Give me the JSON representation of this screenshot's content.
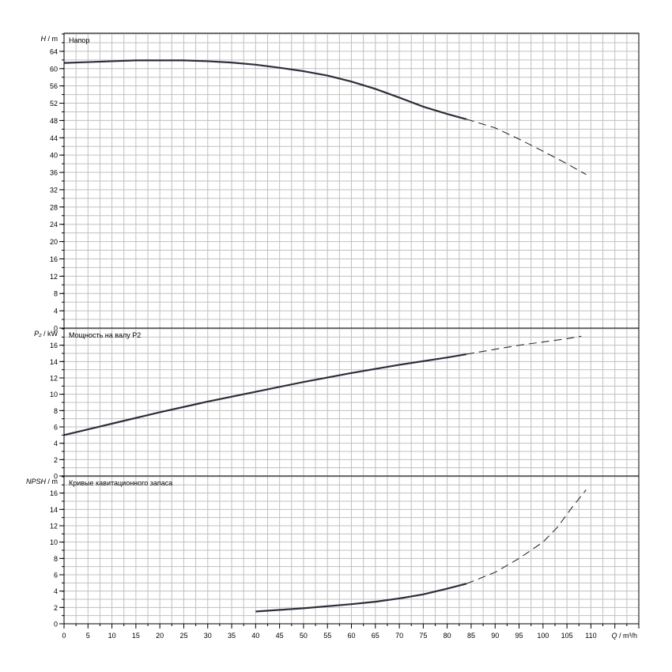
{
  "chart_data": [
    {
      "type": "line",
      "title": "Напор",
      "ylabel_symbol": "H",
      "ylabel_unit": "m",
      "ylim": [
        0,
        68
      ],
      "yticks": [
        0,
        4,
        8,
        12,
        16,
        20,
        24,
        28,
        32,
        36,
        40,
        44,
        48,
        52,
        56,
        60,
        64
      ],
      "series": [
        {
          "style": "solid",
          "x": [
            0,
            5,
            10,
            15,
            20,
            25,
            30,
            35,
            40,
            45,
            50,
            55,
            60,
            65,
            70,
            75,
            80,
            84
          ],
          "y": [
            61.3,
            61.5,
            61.7,
            61.9,
            61.9,
            61.9,
            61.7,
            61.4,
            60.9,
            60.2,
            59.4,
            58.4,
            57.0,
            55.3,
            53.3,
            51.2,
            49.5,
            48.3
          ]
        },
        {
          "style": "dashed",
          "x": [
            84,
            90,
            95,
            100,
            105,
            109
          ],
          "y": [
            48.3,
            46.3,
            43.7,
            40.9,
            38.0,
            35.5
          ]
        }
      ]
    },
    {
      "type": "line",
      "title": "Мощность на валу P2",
      "ylabel_symbol": "P₂",
      "ylabel_unit": "kW",
      "ylim": [
        0,
        18
      ],
      "yticks": [
        0,
        2,
        4,
        6,
        8,
        10,
        12,
        14,
        16
      ],
      "series": [
        {
          "style": "solid",
          "x": [
            0,
            10,
            20,
            30,
            40,
            50,
            60,
            70,
            80,
            84
          ],
          "y": [
            5.0,
            6.4,
            7.8,
            9.1,
            10.3,
            11.5,
            12.6,
            13.6,
            14.5,
            14.9
          ]
        },
        {
          "style": "dashed",
          "x": [
            84,
            90,
            95,
            100,
            105,
            108
          ],
          "y": [
            14.9,
            15.5,
            16.0,
            16.4,
            16.8,
            17.1
          ]
        }
      ]
    },
    {
      "type": "line",
      "title": "Кривые кавитационного запаса",
      "ylabel_symbol": "NPSH",
      "ylabel_unit": "m",
      "ylim": [
        0,
        18
      ],
      "yticks": [
        0,
        2,
        4,
        6,
        8,
        10,
        12,
        14,
        16
      ],
      "series": [
        {
          "style": "solid",
          "x": [
            40,
            50,
            60,
            65,
            70,
            75,
            80,
            84
          ],
          "y": [
            1.5,
            1.9,
            2.4,
            2.7,
            3.1,
            3.6,
            4.3,
            4.9
          ]
        },
        {
          "style": "dashed",
          "x": [
            84,
            90,
            95,
            100,
            103,
            106,
            109
          ],
          "y": [
            4.9,
            6.3,
            8.0,
            10.0,
            11.8,
            14.2,
            16.4
          ]
        }
      ]
    }
  ],
  "x_axis": {
    "symbol": "Q",
    "unit": "m³/h",
    "ticks": [
      0,
      5,
      10,
      15,
      20,
      25,
      30,
      35,
      40,
      45,
      50,
      55,
      60,
      65,
      70,
      75,
      80,
      85,
      90,
      95,
      100,
      105,
      110
    ],
    "xlim": [
      0,
      120
    ]
  },
  "colors": {
    "curve": "#2b2f3a",
    "grid": "#c0c0c0",
    "frame": "#000000"
  }
}
